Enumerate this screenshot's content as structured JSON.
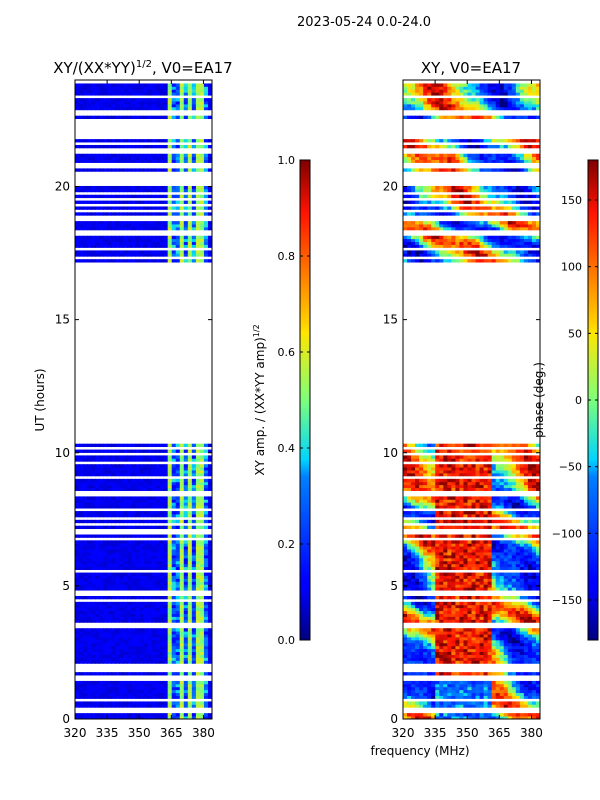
{
  "suptitle": "2023-05-24 0.0-24.0",
  "shared_xlabel": "frequency (MHz)",
  "chart_data": [
    {
      "type": "heatmap",
      "title": "XY/(XX*YY)",
      "title_sup": "1/2",
      "title_suffix": ", V0=EA17",
      "xlabel": "",
      "ylabel": "UT (hours)",
      "xlim": [
        320,
        384
      ],
      "ylim": [
        0,
        24
      ],
      "xticks": [
        320,
        335,
        350,
        365,
        380
      ],
      "yticks": [
        0,
        5,
        10,
        15,
        20
      ],
      "ytick_labels": [
        "0",
        "5",
        "10",
        "15",
        "20"
      ],
      "colorbar": {
        "label": "XY amp. / (XX*YY amp)",
        "label_sup": "1/2",
        "range": [
          0.0,
          1.0
        ],
        "ticks": [
          0.0,
          0.2,
          0.4,
          0.6,
          0.8,
          1.0
        ],
        "tick_labels": [
          "0.0",
          "0.2",
          "0.4",
          "0.6",
          "0.8",
          "1.0"
        ],
        "colormap": "jet"
      }
    },
    {
      "type": "heatmap",
      "title": "XY, V0=EA17",
      "xlabel": "",
      "ylabel": "",
      "xlim": [
        320,
        384
      ],
      "ylim": [
        0,
        24
      ],
      "xticks": [
        320,
        335,
        350,
        365,
        380
      ],
      "yticks": [
        0,
        5,
        10,
        15,
        20
      ],
      "ytick_labels": [
        "0",
        "5",
        "10",
        "15",
        "20"
      ],
      "colorbar": {
        "label": "phase (deg.)",
        "range": [
          -180,
          180
        ],
        "ticks": [
          -150,
          -100,
          -50,
          0,
          50,
          100,
          150
        ],
        "tick_labels": [
          "−150",
          "−100",
          "−50",
          "0",
          "50",
          "100",
          "150"
        ],
        "colormap": "jet"
      }
    }
  ],
  "data_blocks_ut": [
    [
      0.0,
      10.3
    ],
    [
      17.2,
      23.9
    ]
  ],
  "gap_rows_ut": [
    0.35,
    0.7,
    1.55,
    1.85,
    2.05,
    3.45,
    3.6,
    4.45,
    4.75,
    5.55,
    6.75,
    7.05,
    7.3,
    7.55,
    7.85,
    8.45,
    9.05,
    9.65,
    9.95,
    10.15,
    17.35,
    17.65,
    18.2,
    18.8,
    19.1,
    19.3,
    19.55,
    19.75,
    20.15,
    20.45,
    20.8,
    21.35,
    21.6,
    21.85,
    22.5,
    22.75,
    23.35
  ],
  "gap_rows_wide_ut": [
    [
      21.9,
      22.5
    ],
    [
      20.2,
      20.4
    ],
    [
      18.25,
      18.35
    ]
  ]
}
